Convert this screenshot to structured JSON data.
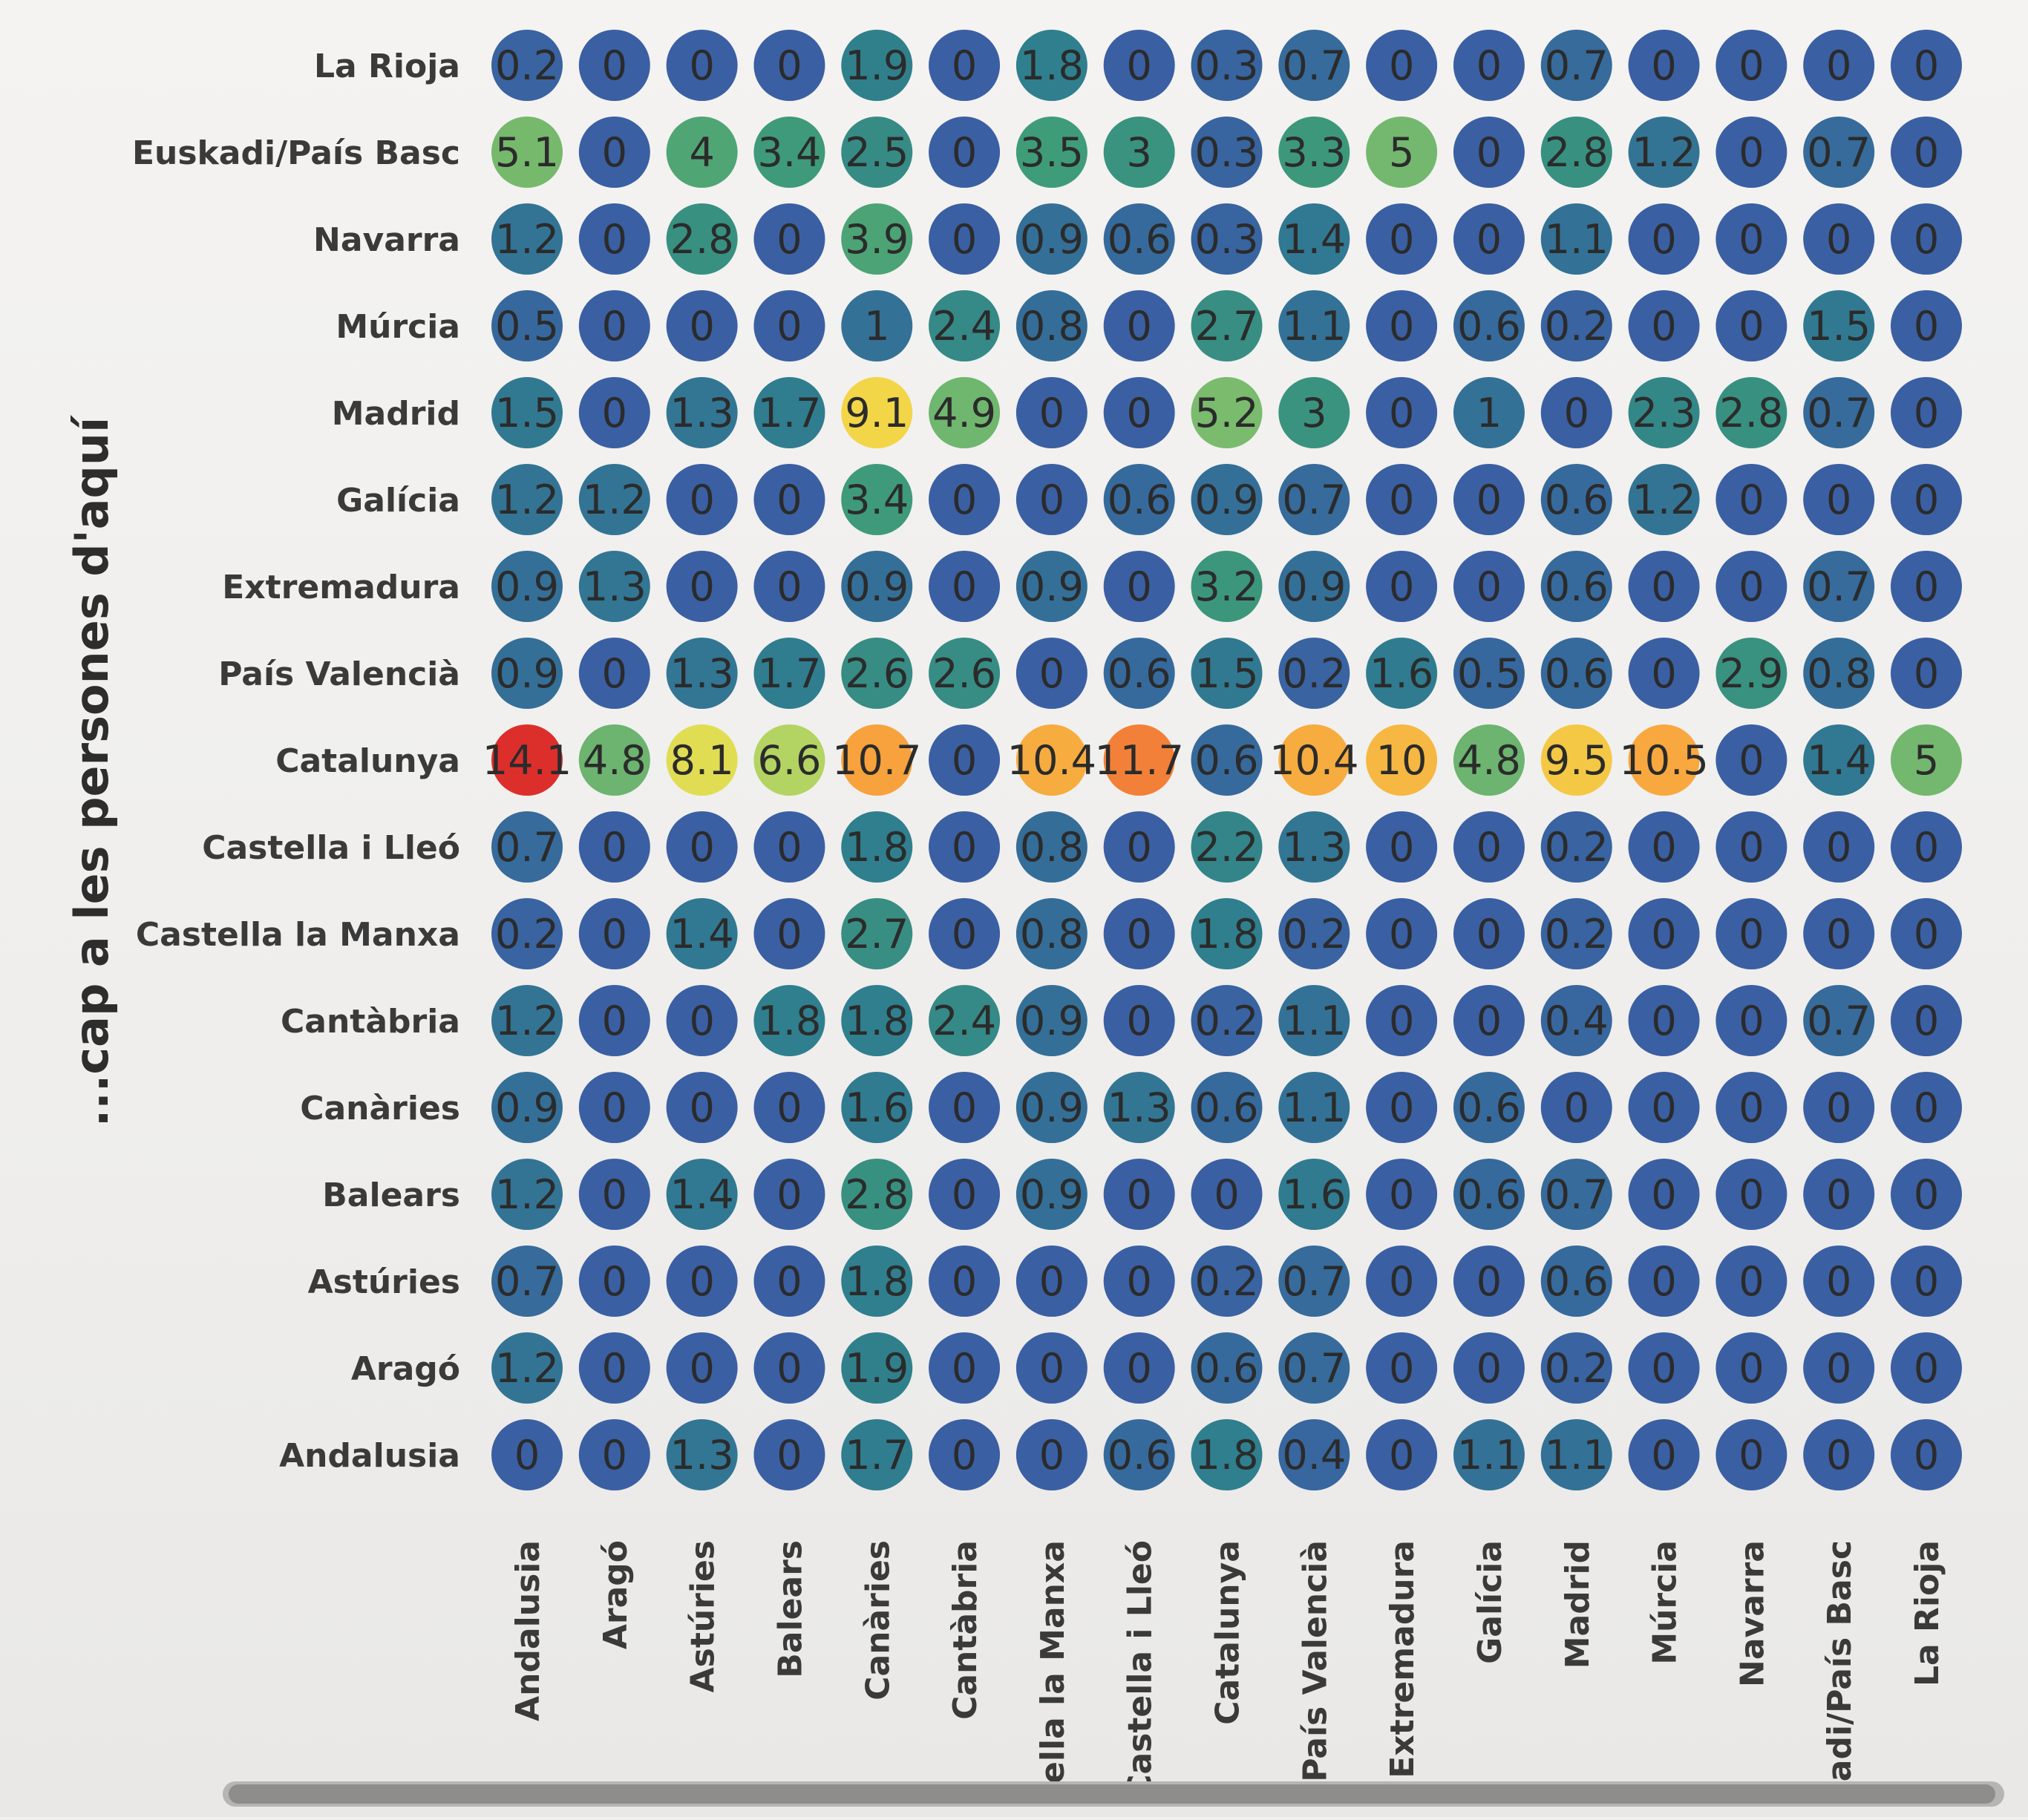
{
  "chart_data": {
    "type": "heatmap",
    "ylabel": "...cap a les persones d'aquí",
    "xlabel": "",
    "rows": [
      "La Rioja",
      "Euskadi/País Basc",
      "Navarra",
      "Múrcia",
      "Madrid",
      "Galícia",
      "Extremadura",
      "País Valencià",
      "Catalunya",
      "Castella i Lleó",
      "Castella la Manxa",
      "Cantàbria",
      "Canàries",
      "Balears",
      "Astúries",
      "Aragó",
      "Andalusia"
    ],
    "columns": [
      "Andalusia",
      "Aragó",
      "Astúries",
      "Balears",
      "Canàries",
      "Cantàbria",
      "tella la Manxa",
      "Castella i Lleó",
      "Catalunya",
      "País Valencià",
      "Extremadura",
      "Galícia",
      "Madrid",
      "Múrcia",
      "Navarra",
      "kadi/País Basc",
      "La Rioja"
    ],
    "values": [
      [
        0.2,
        0,
        0,
        0,
        1.9,
        0,
        1.8,
        0,
        0.3,
        0.7,
        0,
        0,
        0.7,
        0,
        0,
        0,
        0
      ],
      [
        5.1,
        0,
        4,
        3.4,
        2.5,
        0,
        3.5,
        3,
        0.3,
        3.3,
        5,
        0,
        2.8,
        1.2,
        0,
        0.7,
        0
      ],
      [
        1.2,
        0,
        2.8,
        0,
        3.9,
        0,
        0.9,
        0.6,
        0.3,
        1.4,
        0,
        0,
        1.1,
        0,
        0,
        0,
        0
      ],
      [
        0.5,
        0,
        0,
        0,
        1,
        2.4,
        0.8,
        0,
        2.7,
        1.1,
        0,
        0.6,
        0.2,
        0,
        0,
        1.5,
        0
      ],
      [
        1.5,
        0,
        1.3,
        1.7,
        9.1,
        4.9,
        0,
        0,
        5.2,
        3,
        0,
        1,
        0,
        2.3,
        2.8,
        0.7,
        0
      ],
      [
        1.2,
        1.2,
        0,
        0,
        3.4,
        0,
        0,
        0.6,
        0.9,
        0.7,
        0,
        0,
        0.6,
        1.2,
        0,
        0,
        0
      ],
      [
        0.9,
        1.3,
        0,
        0,
        0.9,
        0,
        0.9,
        0,
        3.2,
        0.9,
        0,
        0,
        0.6,
        0,
        0,
        0.7,
        0
      ],
      [
        0.9,
        0,
        1.3,
        1.7,
        2.6,
        2.6,
        0,
        0.6,
        1.5,
        0.2,
        1.6,
        0.5,
        0.6,
        0,
        2.9,
        0.8,
        0
      ],
      [
        14.1,
        4.8,
        8.1,
        6.6,
        10.7,
        0,
        10.4,
        11.7,
        0.6,
        10.4,
        10,
        4.8,
        9.5,
        10.5,
        0,
        1.4,
        5
      ],
      [
        0.7,
        0,
        0,
        0,
        1.8,
        0,
        0.8,
        0,
        2.2,
        1.3,
        0,
        0,
        0.2,
        0,
        0,
        0,
        0
      ],
      [
        0.2,
        0,
        1.4,
        0,
        2.7,
        0,
        0.8,
        0,
        1.8,
        0.2,
        0,
        0,
        0.2,
        0,
        0,
        0,
        0
      ],
      [
        1.2,
        0,
        0,
        1.8,
        1.8,
        2.4,
        0.9,
        0,
        0.2,
        1.1,
        0,
        0,
        0.4,
        0,
        0,
        0.7,
        0
      ],
      [
        0.9,
        0,
        0,
        0,
        1.6,
        0,
        0.9,
        1.3,
        0.6,
        1.1,
        0,
        0.6,
        0,
        0,
        0,
        0,
        0
      ],
      [
        1.2,
        0,
        1.4,
        0,
        2.8,
        0,
        0.9,
        0,
        0,
        1.6,
        0,
        0.6,
        0.7,
        0,
        0,
        0,
        0
      ],
      [
        0.7,
        0,
        0,
        0,
        1.8,
        0,
        0,
        0,
        0.2,
        0.7,
        0,
        0,
        0.6,
        0,
        0,
        0,
        0
      ],
      [
        1.2,
        0,
        0,
        0,
        1.9,
        0,
        0,
        0,
        0.6,
        0.7,
        0,
        0,
        0.2,
        0,
        0,
        0,
        0
      ],
      [
        0,
        0,
        1.3,
        0,
        1.7,
        0,
        0,
        0.6,
        1.8,
        0.4,
        0,
        1.1,
        1.1,
        0,
        0,
        0,
        0
      ]
    ],
    "colorscale": [
      "#3a5fa3",
      "#2f7e8e",
      "#3f9c78",
      "#7dbd6c",
      "#c6dc5e",
      "#f2de4a",
      "#f8a63e",
      "#ef6a34",
      "#dc2f2c"
    ],
    "value_range": [
      0,
      14.1
    ],
    "grid": false,
    "legend": "none"
  }
}
